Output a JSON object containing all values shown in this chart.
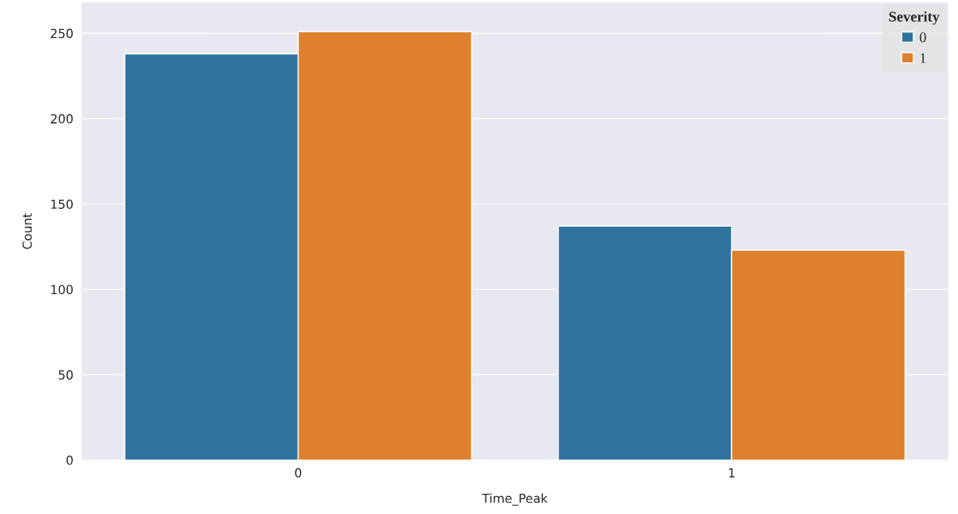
{
  "chart_data": {
    "type": "bar",
    "xlabel": "Time_Peak",
    "ylabel": "Count",
    "legend_title": "Severity",
    "categories": [
      "0",
      "1"
    ],
    "series": [
      {
        "name": "0",
        "color": "#30729e",
        "values": [
          238,
          137
        ]
      },
      {
        "name": "1",
        "color": "#de802d",
        "values": [
          251,
          123
        ]
      }
    ],
    "ylim": [
      0,
      268
    ],
    "yticks": [
      0,
      50,
      100,
      150,
      200,
      250
    ],
    "grid": "y",
    "legend": "top right"
  }
}
